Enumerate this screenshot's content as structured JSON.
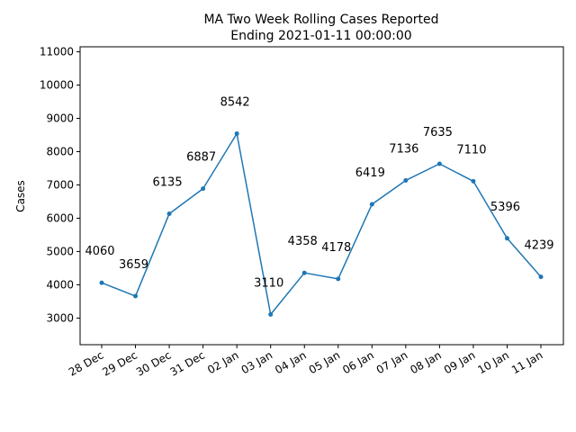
{
  "chart_data": {
    "type": "line",
    "title_line1": "MA Two Week Rolling Cases Reported",
    "title_line2": "Ending 2021-01-11 00:00:00",
    "xlabel": "",
    "ylabel": "Cases",
    "categories": [
      "28 Dec",
      "29 Dec",
      "30 Dec",
      "31 Dec",
      "02 Jan",
      "03 Jan",
      "04 Jan",
      "05 Jan",
      "06 Jan",
      "07 Jan",
      "08 Jan",
      "09 Jan",
      "10 Jan",
      "11 Jan"
    ],
    "values": [
      4060,
      3659,
      6135,
      6887,
      8542,
      3110,
      4358,
      4178,
      6419,
      7136,
      7635,
      7110,
      5396,
      4239
    ],
    "yticks": [
      3000,
      4000,
      5000,
      6000,
      7000,
      8000,
      9000,
      10000,
      11000
    ],
    "ylim": [
      2200,
      11150
    ],
    "grid": false,
    "legend": "none",
    "line_color": "#1f77b4"
  }
}
